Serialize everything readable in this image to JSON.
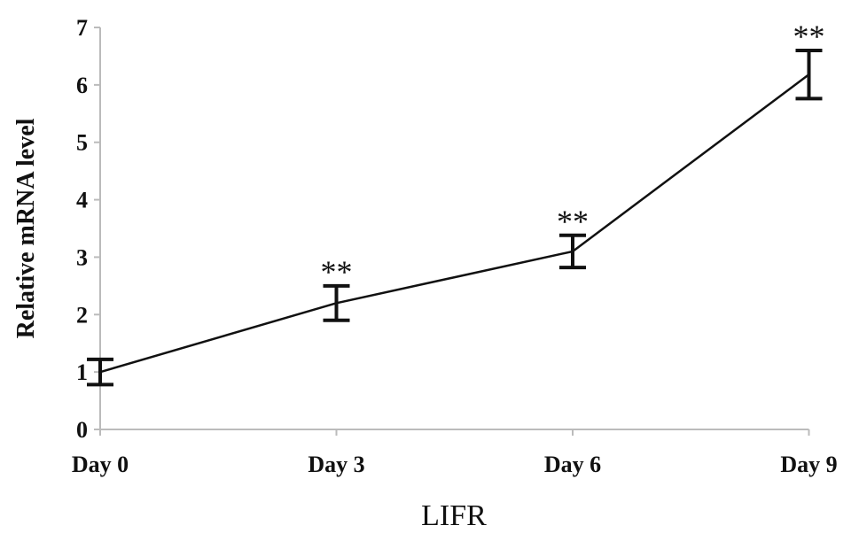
{
  "chart_data": {
    "type": "line",
    "categories": [
      "Day 0",
      "Day 3",
      "Day 6",
      "Day 9"
    ],
    "series": [
      {
        "values": [
          1.0,
          2.2,
          3.1,
          6.18
        ],
        "errors": [
          0.22,
          0.3,
          0.28,
          0.42
        ]
      }
    ],
    "significance": [
      "",
      "**",
      "**",
      "**"
    ],
    "ylim": [
      0,
      7
    ],
    "yticks": [
      "0",
      "1",
      "2",
      "3",
      "4",
      "5",
      "6",
      "7"
    ],
    "xlabel": "LIFR",
    "ylabel": "Relative mRNA level",
    "grid": false,
    "legend": "none",
    "colors": {
      "line": "#111111",
      "axis": "#bbbbbb"
    }
  }
}
